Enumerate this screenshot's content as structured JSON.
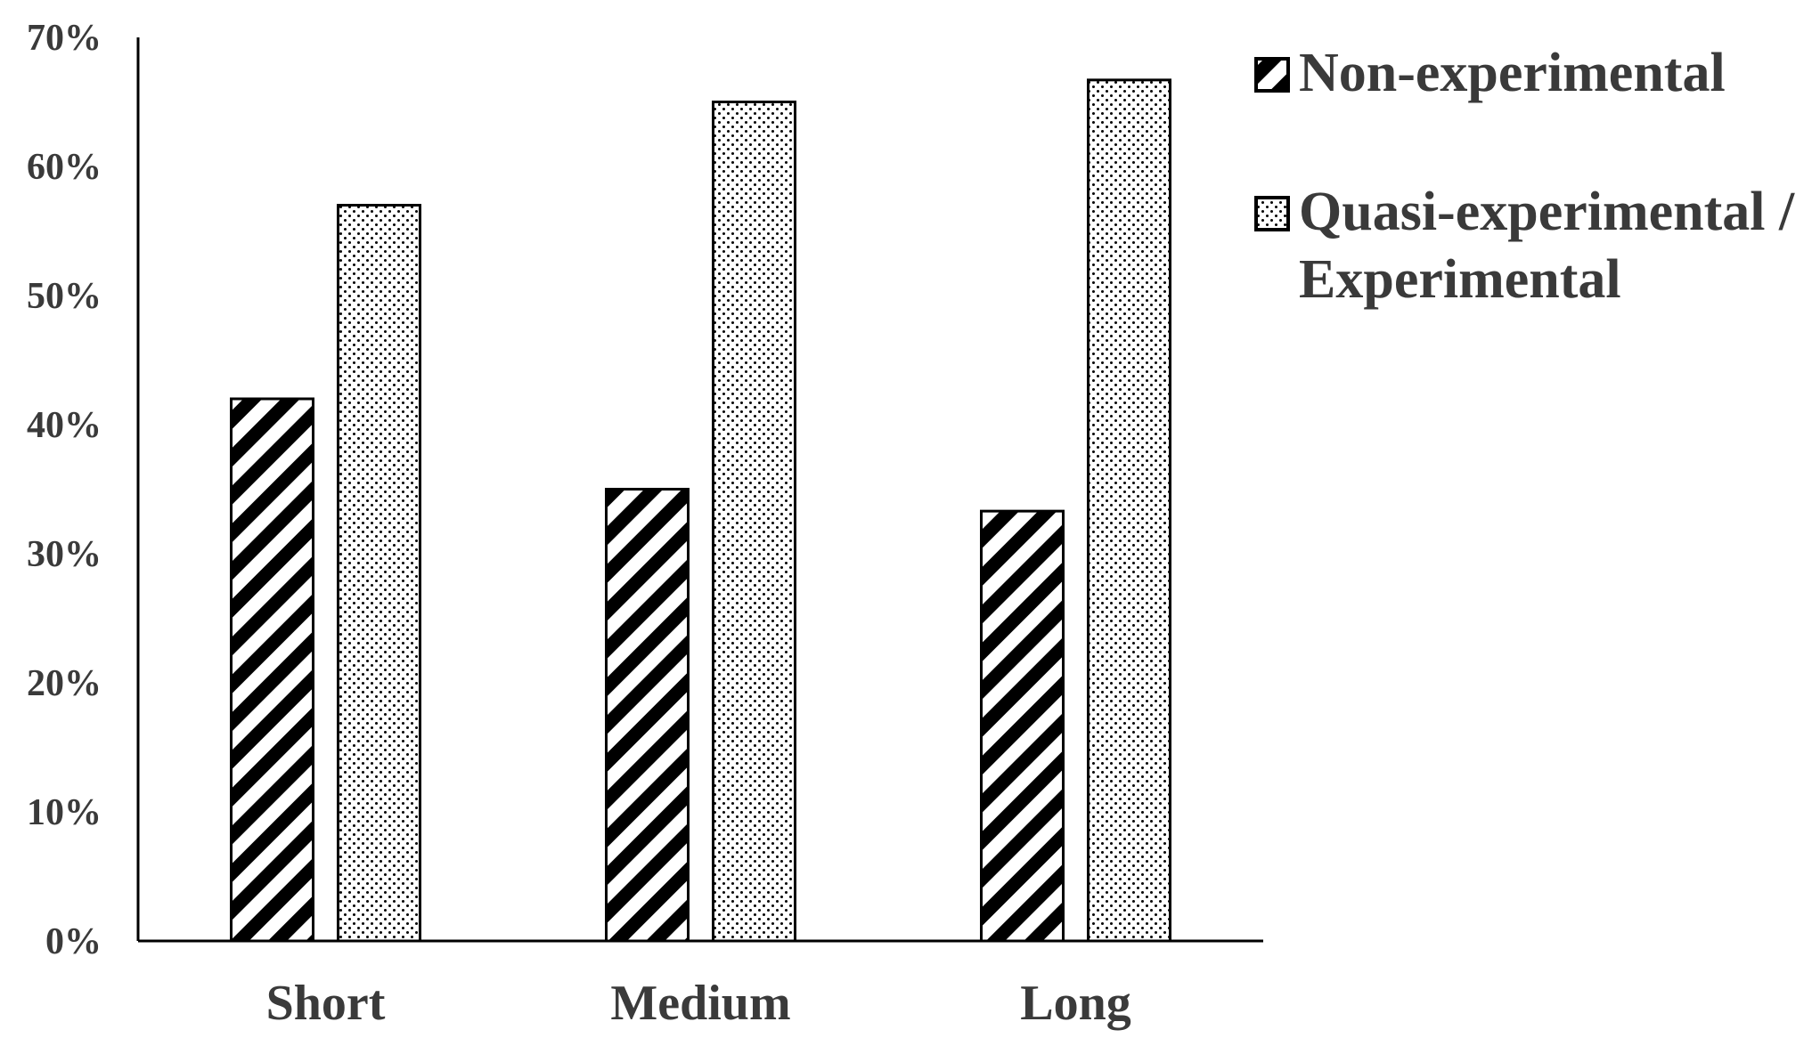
{
  "chart_data": {
    "type": "bar",
    "categories": [
      "Short",
      "Medium",
      "Long"
    ],
    "series": [
      {
        "name": "Non-experimental",
        "pattern": "diagonal-stripes",
        "values": [
          42,
          35,
          33.3
        ]
      },
      {
        "name": "Quasi-experimental / Experimental",
        "name_lines": [
          "Quasi-experimental /",
          "Experimental"
        ],
        "pattern": "dots",
        "values": [
          57,
          65,
          66.7
        ]
      }
    ],
    "ylim": [
      0,
      70
    ],
    "y_ticks": [
      0,
      10,
      20,
      30,
      40,
      50,
      60,
      70
    ],
    "y_tick_labels": [
      "0%",
      "10%",
      "20%",
      "30%",
      "40%",
      "50%",
      "60%",
      "70%"
    ],
    "title": "",
    "xlabel": "",
    "ylabel": "",
    "grid": false,
    "legend_position": "top-right",
    "colors": {
      "bar_stroke": "#000000",
      "bar_fill": "#ffffff",
      "text": "#3a3a3a",
      "axis": "#000000"
    }
  }
}
